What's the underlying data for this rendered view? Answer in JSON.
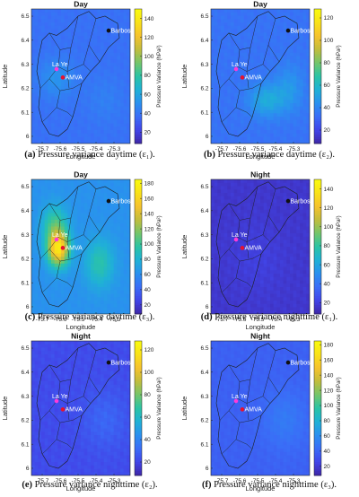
{
  "colors": {
    "colormap": [
      "#3e26a8",
      "#4145e8",
      "#3a6df7",
      "#2a90ef",
      "#1fb1d6",
      "#2bc4a5",
      "#74c56a",
      "#c2bd3c",
      "#f6c22d",
      "#f9e218",
      "#f9fb0e"
    ],
    "marker_red": "#e8112d",
    "marker_black": "#111111",
    "marker_magenta": "#ff3bd8",
    "boundary": "#1e1e1e"
  },
  "chart_data": [
    {
      "type": "heatmap",
      "id": "a",
      "title": "Day",
      "xlabel": "Longitude",
      "ylabel": "Latitude",
      "colorbar_label": "Pressure Variance (hPa²)",
      "x_ticks": [
        "-75.7",
        "-75.6",
        "-75.5",
        "-75.4",
        "-75.3"
      ],
      "y_ticks": [
        "6",
        "6.1",
        "6.2",
        "6.3",
        "6.4",
        "6.5"
      ],
      "xlim": [
        -75.76,
        -75.21
      ],
      "ylim": [
        5.97,
        6.53
      ],
      "cbar_ticks": [
        "20",
        "40",
        "60",
        "80",
        "100",
        "120",
        "140"
      ],
      "cbar_range": [
        8,
        150
      ],
      "field": {
        "base": 38,
        "hotspots": [
          {
            "lon": -75.62,
            "lat": 6.24,
            "peak": 14,
            "sx": 0.1,
            "sy": 0.08
          },
          {
            "lon": -75.35,
            "lat": 6.15,
            "peak": 6,
            "sx": 0.1,
            "sy": 0.1
          }
        ]
      },
      "places": [
        {
          "name": "Barbosa",
          "lon": -75.33,
          "lat": 6.44,
          "marker": "black"
        },
        {
          "name": "La Ye",
          "lon": -75.62,
          "lat": 6.28,
          "marker": "magenta"
        },
        {
          "name": "AMVA",
          "lon": -75.585,
          "lat": 6.245,
          "marker": "red"
        }
      ],
      "caption_letter": "(a)",
      "caption_text": "Pressure variance daytime (ε₁)."
    },
    {
      "type": "heatmap",
      "id": "b",
      "title": "Day",
      "xlabel": "Longitude",
      "ylabel": "Latitude",
      "colorbar_label": "Pressure Variance (hPa²)",
      "x_ticks": [
        "-75.7",
        "-75.6",
        "-75.5",
        "-75.4",
        "-75.3"
      ],
      "y_ticks": [
        "6",
        "6.1",
        "6.2",
        "6.3",
        "6.4",
        "6.5"
      ],
      "xlim": [
        -75.76,
        -75.21
      ],
      "ylim": [
        5.97,
        6.53
      ],
      "cbar_ticks": [
        "20",
        "40",
        "60",
        "80",
        "100",
        "120"
      ],
      "cbar_range": [
        8,
        128
      ],
      "field": {
        "base": 34,
        "hotspots": [
          {
            "lon": -75.45,
            "lat": 6.15,
            "peak": 20,
            "sx": 0.1,
            "sy": 0.07
          },
          {
            "lon": -75.32,
            "lat": 6.2,
            "peak": 12,
            "sx": 0.08,
            "sy": 0.1
          }
        ]
      },
      "places": [
        {
          "name": "Barbosa",
          "lon": -75.33,
          "lat": 6.44,
          "marker": "black"
        },
        {
          "name": "La Ye",
          "lon": -75.62,
          "lat": 6.28,
          "marker": "magenta"
        },
        {
          "name": "AMVA",
          "lon": -75.585,
          "lat": 6.245,
          "marker": "red"
        }
      ],
      "caption_letter": "(b)",
      "caption_text": "Pressure variance daytime (ε₂)."
    },
    {
      "type": "heatmap",
      "id": "c",
      "title": "Day",
      "xlabel": "Longitude",
      "ylabel": "Latitude",
      "colorbar_label": "Pressure Variance (hPa²)",
      "x_ticks": [
        "-75.7",
        "-75.6",
        "-75.5",
        "-75.4",
        "-75.3"
      ],
      "y_ticks": [
        "6",
        "6.1",
        "6.2",
        "6.3",
        "6.4",
        "6.5"
      ],
      "xlim": [
        -75.76,
        -75.21
      ],
      "ylim": [
        5.97,
        6.53
      ],
      "cbar_ticks": [
        "20",
        "40",
        "60",
        "80",
        "100",
        "120",
        "140",
        "160",
        "180"
      ],
      "cbar_range": [
        8,
        185
      ],
      "field": {
        "base": 62,
        "hotspots": [
          {
            "lon": -75.61,
            "lat": 6.24,
            "peak": 105,
            "sx": 0.06,
            "sy": 0.07
          },
          {
            "lon": -75.63,
            "lat": 6.34,
            "peak": 40,
            "sx": 0.07,
            "sy": 0.08
          },
          {
            "lon": -75.38,
            "lat": 6.18,
            "peak": 32,
            "sx": 0.08,
            "sy": 0.1
          }
        ]
      },
      "places": [
        {
          "name": "Barbosa",
          "lon": -75.33,
          "lat": 6.44,
          "marker": "black"
        },
        {
          "name": "La Ye",
          "lon": -75.62,
          "lat": 6.28,
          "marker": "magenta"
        },
        {
          "name": "AMVA",
          "lon": -75.585,
          "lat": 6.245,
          "marker": "red"
        }
      ],
      "caption_letter": "(c)",
      "caption_text": "Pressure variance daytime (ε₃)."
    },
    {
      "type": "heatmap",
      "id": "d",
      "title": "Night",
      "xlabel": "Longitude",
      "ylabel": "Latitude",
      "colorbar_label": "Pressure Variance (hPa²)",
      "x_ticks": [
        "-75.7",
        "-75.6",
        "-75.5",
        "-75.4",
        "-75.3"
      ],
      "y_ticks": [
        "6",
        "6.1",
        "6.2",
        "6.3",
        "6.4",
        "6.5"
      ],
      "xlim": [
        -75.76,
        -75.21
      ],
      "ylim": [
        5.97,
        6.53
      ],
      "cbar_ticks": [
        "20",
        "40",
        "60",
        "80",
        "100",
        "120",
        "140"
      ],
      "cbar_range": [
        8,
        150
      ],
      "field": {
        "base": 16,
        "hotspots": [
          {
            "lon": -75.5,
            "lat": 6.2,
            "peak": 4,
            "sx": 0.15,
            "sy": 0.15
          }
        ]
      },
      "places": [
        {
          "name": "Barbosa",
          "lon": -75.33,
          "lat": 6.44,
          "marker": "black"
        },
        {
          "name": "La Ye",
          "lon": -75.62,
          "lat": 6.28,
          "marker": "magenta"
        },
        {
          "name": "AMVA",
          "lon": -75.585,
          "lat": 6.245,
          "marker": "red"
        }
      ],
      "caption_letter": "(d)",
      "caption_text": "Pressure variance nighttime (ε₁)."
    },
    {
      "type": "heatmap",
      "id": "e",
      "title": "Night",
      "xlabel": "Longitude",
      "ylabel": "Latitude",
      "colorbar_label": "Pressure Variance (hPa²)",
      "x_ticks": [
        "-75.7",
        "-75.6",
        "-75.5",
        "-75.4",
        "-75.3"
      ],
      "y_ticks": [
        "6",
        "6.1",
        "6.2",
        "6.3",
        "6.4",
        "6.5"
      ],
      "xlim": [
        -75.76,
        -75.21
      ],
      "ylim": [
        5.97,
        6.53
      ],
      "cbar_ticks": [
        "20",
        "40",
        "60",
        "80",
        "100",
        "120"
      ],
      "cbar_range": [
        8,
        128
      ],
      "field": {
        "base": 22,
        "hotspots": [
          {
            "lon": -75.35,
            "lat": 6.2,
            "peak": 8,
            "sx": 0.12,
            "sy": 0.12
          }
        ]
      },
      "places": [
        {
          "name": "Barbosa",
          "lon": -75.33,
          "lat": 6.44,
          "marker": "black"
        },
        {
          "name": "La Ye",
          "lon": -75.62,
          "lat": 6.28,
          "marker": "magenta"
        },
        {
          "name": "AMVA",
          "lon": -75.585,
          "lat": 6.245,
          "marker": "red"
        }
      ],
      "caption_letter": "(e)",
      "caption_text": "Pressure variance nighttime (ε₂)."
    },
    {
      "type": "heatmap",
      "id": "f",
      "title": "Night",
      "xlabel": "Longitude",
      "ylabel": "Latitude",
      "colorbar_label": "Pressure Variance (hPa²)",
      "x_ticks": [
        "-75.7",
        "-75.6",
        "-75.5",
        "-75.4",
        "-75.3"
      ],
      "y_ticks": [
        "6",
        "6.1",
        "6.2",
        "6.3",
        "6.4",
        "6.5"
      ],
      "xlim": [
        -75.76,
        -75.21
      ],
      "ylim": [
        5.97,
        6.53
      ],
      "cbar_ticks": [
        "20",
        "40",
        "60",
        "80",
        "100",
        "120",
        "140",
        "160",
        "180"
      ],
      "cbar_range": [
        8,
        185
      ],
      "field": {
        "base": 38,
        "hotspots": [
          {
            "lon": -75.35,
            "lat": 6.2,
            "peak": 12,
            "sx": 0.12,
            "sy": 0.12
          }
        ]
      },
      "places": [
        {
          "name": "Barbosa",
          "lon": -75.33,
          "lat": 6.44,
          "marker": "black"
        },
        {
          "name": "La Ye",
          "lon": -75.62,
          "lat": 6.28,
          "marker": "magenta"
        },
        {
          "name": "AMVA",
          "lon": -75.585,
          "lat": 6.245,
          "marker": "red"
        }
      ],
      "caption_letter": "(f)",
      "caption_text": "Pressure variance nighttime (ε₃)."
    }
  ]
}
